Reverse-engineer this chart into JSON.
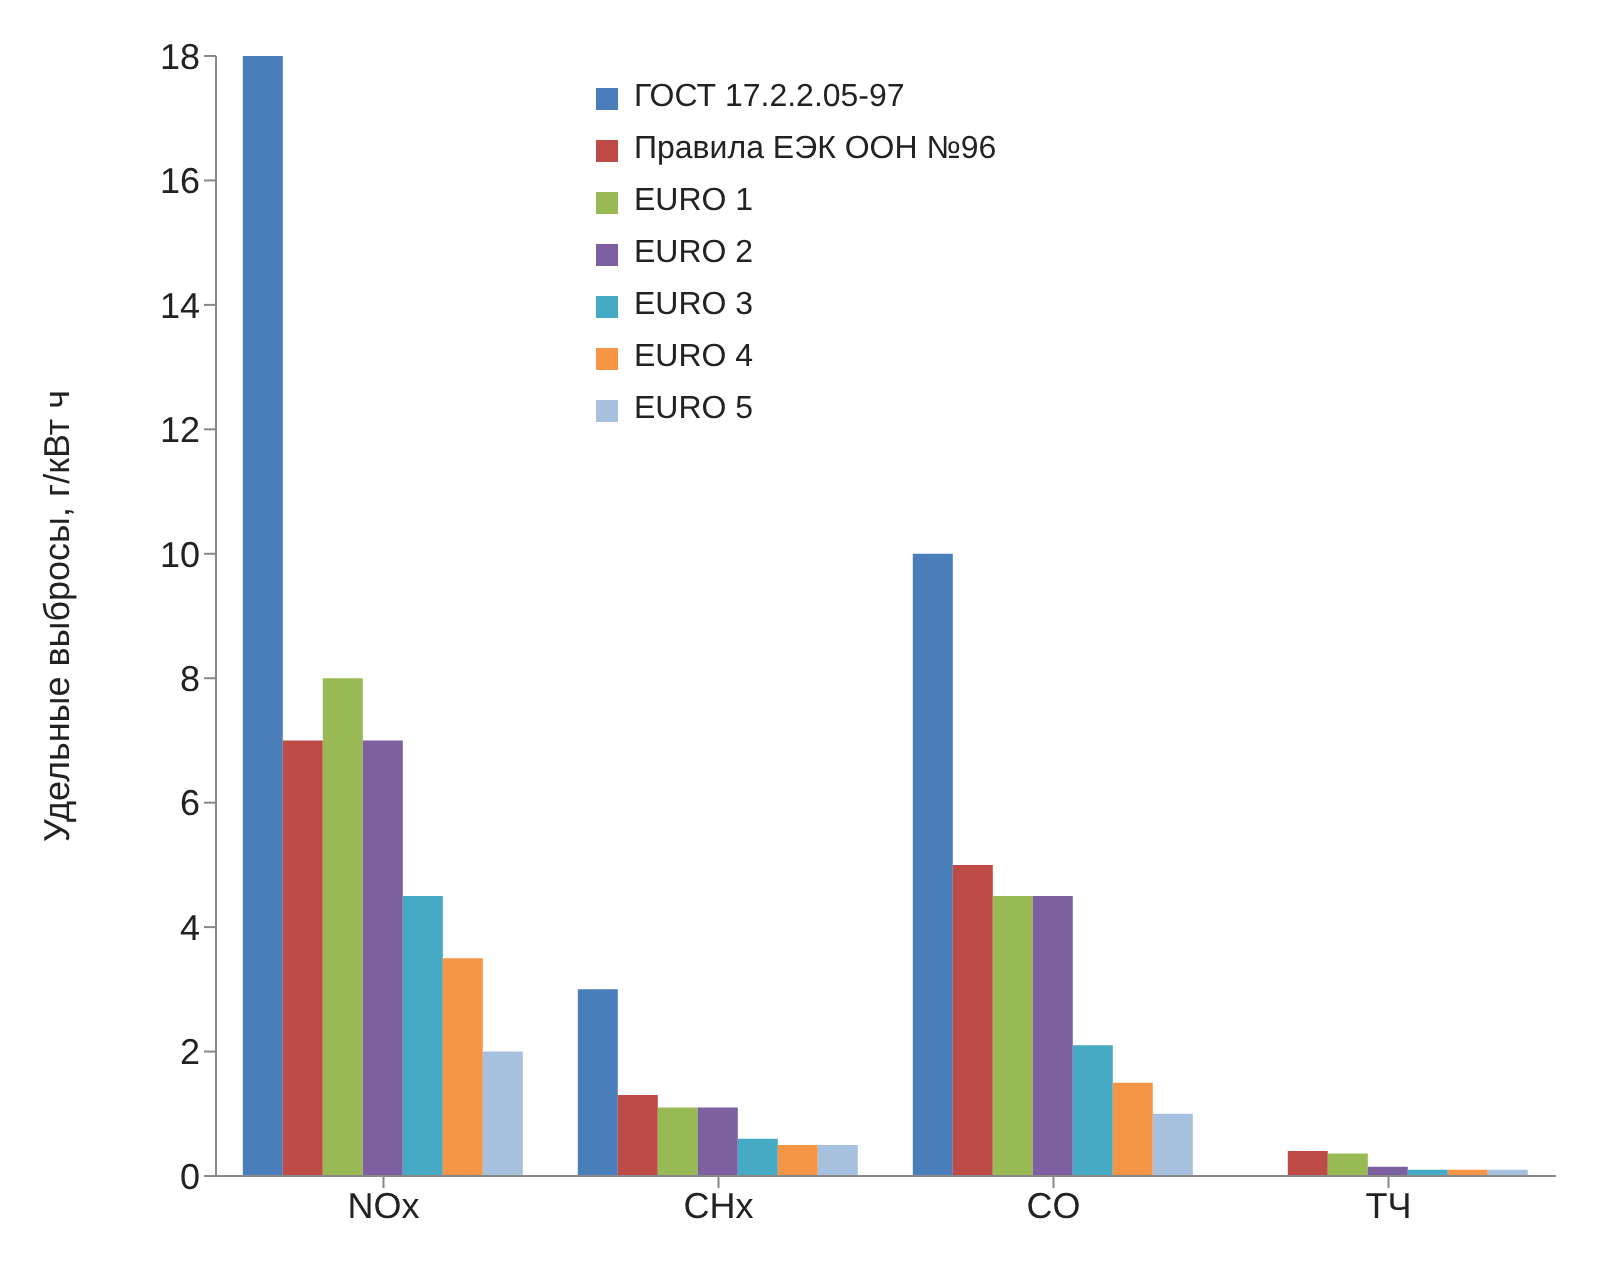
{
  "chart_data": {
    "type": "bar",
    "ylabel": "Удельные выбросы, г/кВт ч",
    "categories": [
      "NOx",
      "CHx",
      "CO",
      "ТЧ"
    ],
    "series": [
      {
        "name": "ГОСТ 17.2.2.05-97",
        "color": "#4a7ebb",
        "values": [
          18,
          3,
          10,
          null
        ]
      },
      {
        "name": "Правила ЕЭК ООН №96",
        "color": "#be4b48",
        "values": [
          7,
          1.3,
          5,
          0.4
        ]
      },
      {
        "name": "EURO 1",
        "color": "#98b954",
        "values": [
          8,
          1.1,
          4.5,
          0.36
        ]
      },
      {
        "name": "EURO 2",
        "color": "#7d60a0",
        "values": [
          7,
          1.1,
          4.5,
          0.15
        ]
      },
      {
        "name": "EURO 3",
        "color": "#46aac5",
        "values": [
          4.5,
          0.6,
          2.1,
          0.1
        ]
      },
      {
        "name": "EURO 4",
        "color": "#f69545",
        "values": [
          3.5,
          0.5,
          1.5,
          0.1
        ]
      },
      {
        "name": "EURO 5",
        "color": "#a7c0de",
        "values": [
          2,
          0.5,
          1,
          0.1
        ]
      }
    ],
    "ylim": [
      0,
      18
    ],
    "yticks": [
      0,
      2,
      4,
      6,
      8,
      10,
      12,
      14,
      16,
      18
    ],
    "grid": false,
    "legend": "top"
  }
}
